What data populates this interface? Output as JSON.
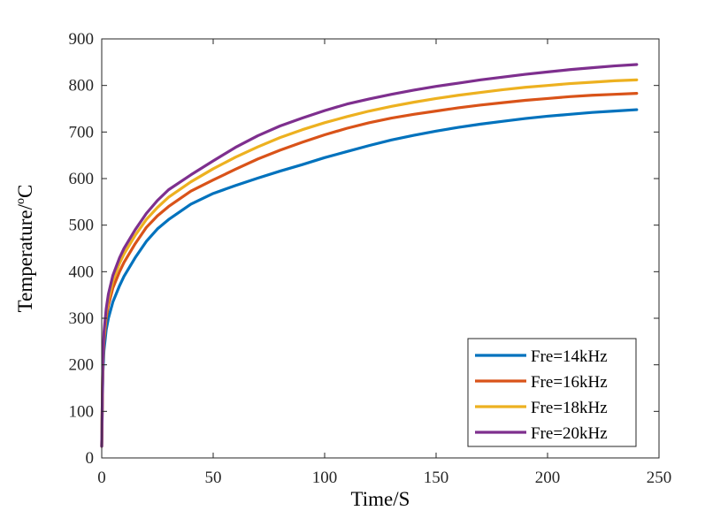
{
  "chart_data": {
    "type": "line",
    "xlabel": "Time/S",
    "ylabel_main": "Temperature/",
    "ylabel_sup": "o",
    "ylabel_unit": "C",
    "xlim": [
      0,
      250
    ],
    "ylim": [
      0,
      900
    ],
    "xticks": [
      0,
      50,
      100,
      150,
      200,
      250
    ],
    "yticks": [
      0,
      100,
      200,
      300,
      400,
      500,
      600,
      700,
      800,
      900
    ],
    "grid": false,
    "legend_position": "bottom-right",
    "series": [
      {
        "name": "Fre=14kHz",
        "color": "#0072BD",
        "x": [
          0,
          0.5,
          1,
          2,
          3,
          5,
          8,
          10,
          15,
          20,
          25,
          30,
          40,
          50,
          60,
          70,
          80,
          90,
          100,
          110,
          120,
          130,
          140,
          150,
          160,
          170,
          180,
          190,
          200,
          210,
          220,
          230,
          240
        ],
        "y": [
          25,
          180,
          230,
          275,
          300,
          335,
          370,
          390,
          430,
          465,
          492,
          512,
          545,
          568,
          585,
          601,
          616,
          630,
          645,
          658,
          671,
          683,
          693,
          702,
          710,
          717,
          723,
          729,
          734,
          738,
          742,
          745,
          748
        ]
      },
      {
        "name": "Fre=16kHz",
        "color": "#D95319",
        "x": [
          0,
          0.5,
          1,
          2,
          3,
          5,
          8,
          10,
          15,
          20,
          25,
          30,
          40,
          50,
          60,
          70,
          80,
          90,
          100,
          110,
          120,
          130,
          140,
          150,
          160,
          170,
          180,
          190,
          200,
          210,
          220,
          230,
          240
        ],
        "y": [
          25,
          200,
          250,
          300,
          328,
          365,
          400,
          420,
          460,
          495,
          520,
          540,
          573,
          597,
          620,
          642,
          661,
          678,
          694,
          708,
          720,
          730,
          738,
          745,
          752,
          758,
          763,
          768,
          772,
          776,
          779,
          781,
          783
        ]
      },
      {
        "name": "Fre=18kHz",
        "color": "#EDB120",
        "x": [
          0,
          0.5,
          1,
          2,
          3,
          5,
          8,
          10,
          15,
          20,
          25,
          30,
          40,
          50,
          60,
          70,
          80,
          90,
          100,
          110,
          120,
          130,
          140,
          150,
          160,
          170,
          180,
          190,
          200,
          210,
          220,
          230,
          240
        ],
        "y": [
          25,
          205,
          260,
          310,
          340,
          380,
          418,
          438,
          478,
          512,
          538,
          560,
          593,
          621,
          646,
          668,
          688,
          705,
          720,
          733,
          745,
          755,
          764,
          772,
          779,
          785,
          791,
          796,
          800,
          804,
          807,
          810,
          812
        ]
      },
      {
        "name": "Fre=20kHz",
        "color": "#7E2F8E",
        "x": [
          0,
          0.5,
          1,
          2,
          3,
          5,
          8,
          10,
          15,
          20,
          25,
          30,
          40,
          50,
          60,
          70,
          80,
          90,
          100,
          110,
          120,
          130,
          140,
          150,
          160,
          170,
          180,
          190,
          200,
          210,
          220,
          230,
          240
        ],
        "y": [
          25,
          210,
          270,
          320,
          352,
          392,
          430,
          450,
          490,
          525,
          553,
          576,
          608,
          638,
          667,
          692,
          713,
          730,
          746,
          760,
          771,
          781,
          790,
          798,
          805,
          812,
          818,
          824,
          829,
          834,
          838,
          842,
          845
        ]
      }
    ]
  }
}
